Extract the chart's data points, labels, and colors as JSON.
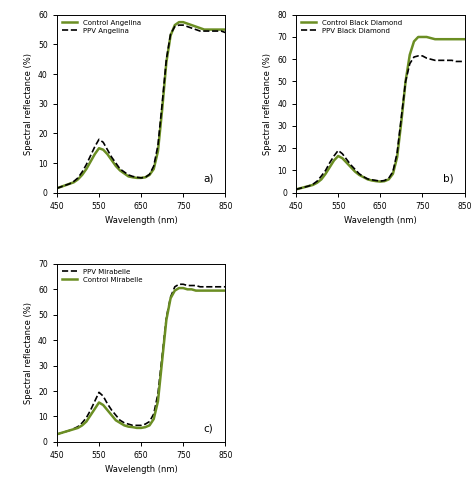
{
  "wavelengths": [
    450,
    460,
    470,
    480,
    490,
    500,
    510,
    520,
    530,
    540,
    550,
    560,
    570,
    580,
    590,
    600,
    610,
    620,
    630,
    640,
    650,
    660,
    670,
    680,
    690,
    700,
    710,
    720,
    730,
    740,
    750,
    760,
    770,
    780,
    790,
    800,
    810,
    820,
    830,
    840,
    850
  ],
  "angelina_control": [
    1.5,
    2.0,
    2.5,
    3.0,
    3.5,
    4.5,
    6.0,
    8.0,
    10.5,
    13.0,
    15.0,
    14.5,
    13.0,
    11.0,
    9.0,
    7.5,
    6.5,
    5.5,
    5.2,
    5.0,
    5.0,
    5.2,
    6.0,
    8.0,
    14.0,
    28.0,
    44.0,
    53.0,
    56.5,
    57.5,
    57.5,
    57.0,
    56.5,
    56.0,
    55.5,
    55.0,
    55.0,
    55.0,
    55.0,
    55.0,
    55.0
  ],
  "angelina_ppv": [
    1.5,
    2.0,
    2.5,
    3.0,
    3.8,
    5.0,
    7.0,
    9.5,
    12.5,
    15.5,
    18.0,
    17.0,
    14.5,
    12.0,
    10.0,
    8.0,
    7.0,
    6.0,
    5.5,
    5.2,
    5.0,
    5.2,
    6.2,
    9.0,
    16.0,
    30.0,
    45.0,
    53.5,
    56.0,
    56.5,
    56.5,
    56.0,
    55.5,
    55.0,
    54.5,
    54.5,
    54.5,
    54.5,
    54.5,
    54.5,
    54.0
  ],
  "blackdiamond_control": [
    1.5,
    2.0,
    2.5,
    3.0,
    3.5,
    4.5,
    6.0,
    8.5,
    11.5,
    14.5,
    16.5,
    15.5,
    13.5,
    11.5,
    9.5,
    8.0,
    7.0,
    6.0,
    5.5,
    5.2,
    5.0,
    5.2,
    6.0,
    8.5,
    16.0,
    32.0,
    50.0,
    62.0,
    68.0,
    70.0,
    70.0,
    70.0,
    69.5,
    69.0,
    69.0,
    69.0,
    69.0,
    69.0,
    69.0,
    69.0,
    69.0
  ],
  "blackdiamond_ppv": [
    1.5,
    2.0,
    2.5,
    3.0,
    3.8,
    5.2,
    7.5,
    10.0,
    13.5,
    16.5,
    19.0,
    17.5,
    15.0,
    12.5,
    10.5,
    8.5,
    7.2,
    6.2,
    5.8,
    5.5,
    5.2,
    5.5,
    6.5,
    9.5,
    18.0,
    34.0,
    50.0,
    58.0,
    61.0,
    61.5,
    61.5,
    60.5,
    60.0,
    59.5,
    59.5,
    59.5,
    59.5,
    59.5,
    59.0,
    59.0,
    59.0
  ],
  "mirabelle_control": [
    3.0,
    3.5,
    4.0,
    4.5,
    5.0,
    5.5,
    6.5,
    8.0,
    10.5,
    13.0,
    15.5,
    14.5,
    12.5,
    10.5,
    8.5,
    7.5,
    6.5,
    6.0,
    5.8,
    5.5,
    5.5,
    5.8,
    6.5,
    9.0,
    16.0,
    32.0,
    48.0,
    56.5,
    59.5,
    60.5,
    60.5,
    60.0,
    60.0,
    59.5,
    59.5,
    59.5,
    59.5,
    59.5,
    59.5,
    59.5,
    59.5
  ],
  "mirabelle_ppv": [
    3.0,
    3.5,
    4.0,
    4.5,
    5.2,
    6.0,
    7.5,
    9.5,
    12.5,
    16.0,
    19.5,
    18.0,
    15.0,
    12.5,
    10.5,
    8.5,
    7.5,
    7.0,
    6.5,
    6.5,
    6.5,
    7.0,
    8.0,
    11.0,
    19.0,
    34.0,
    49.0,
    57.0,
    61.0,
    62.0,
    62.0,
    61.5,
    61.5,
    61.5,
    61.0,
    61.0,
    61.0,
    61.0,
    61.0,
    61.0,
    61.0
  ],
  "control_color": "#6b8e23",
  "ppv_color": "#000000",
  "xlim": [
    450,
    850
  ],
  "xticks": [
    450,
    550,
    650,
    750,
    850
  ],
  "xlabel": "Wavelength (nm)",
  "ylabel": "Spectral reflectance (%)",
  "ylim_a": [
    0,
    60
  ],
  "yticks_a": [
    0,
    10,
    20,
    30,
    40,
    50,
    60
  ],
  "ylim_b": [
    0,
    80
  ],
  "yticks_b": [
    0,
    10,
    20,
    30,
    40,
    50,
    60,
    70,
    80
  ],
  "ylim_c": [
    0,
    70
  ],
  "yticks_c": [
    0,
    10,
    20,
    30,
    40,
    50,
    60,
    70
  ],
  "label_a_control": "Control Angelina",
  "label_a_ppv": "PPV Angelina",
  "label_b_control": "Control Black Diamond",
  "label_b_ppv": "PPV Black Diamond",
  "label_c_ppv": "PPV Mirabelle",
  "label_c_control": "Control Mirabelle",
  "tag_a": "a)",
  "tag_b": "b)",
  "tag_c": "c)"
}
